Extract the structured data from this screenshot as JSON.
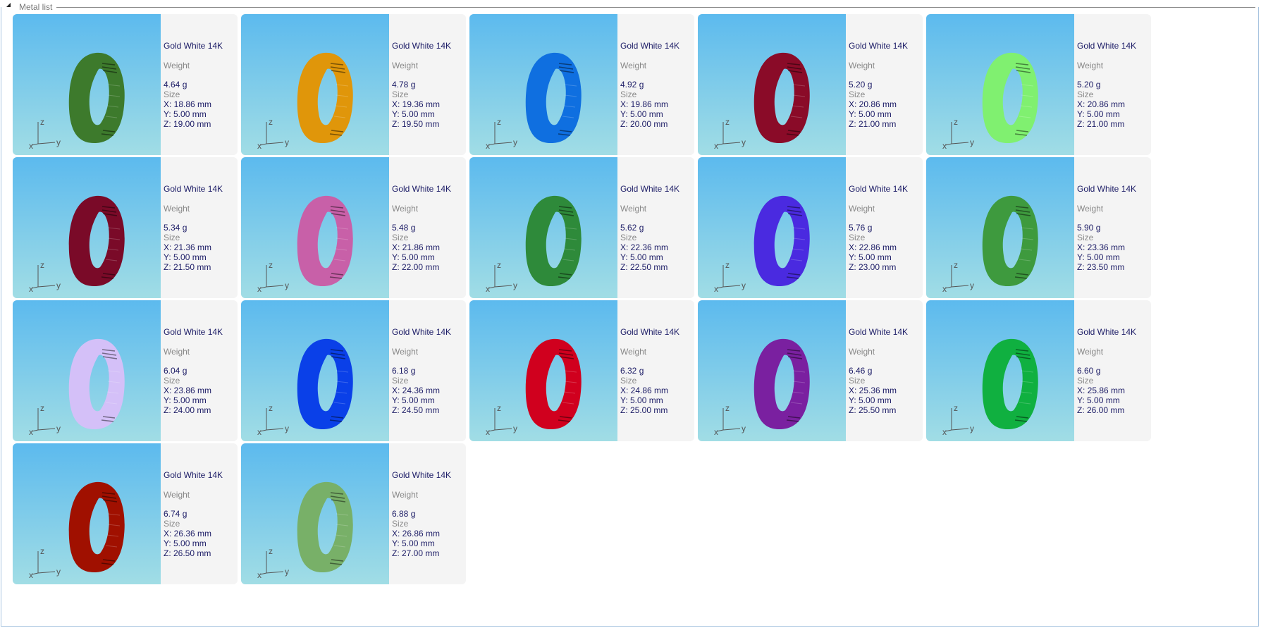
{
  "panel": {
    "title": "Metal list"
  },
  "labels": {
    "weight": "Weight",
    "size": "Size"
  },
  "items": [
    {
      "name": "Gold White 14K",
      "weight": "4.64 g",
      "x": "X: 18.86 mm",
      "y": "Y: 5.00 mm",
      "z": "Z: 19.00 mm",
      "color": "#3d7a2c"
    },
    {
      "name": "Gold White 14K",
      "weight": "4.78 g",
      "x": "X: 19.36 mm",
      "y": "Y: 5.00 mm",
      "z": "Z: 19.50 mm",
      "color": "#e0960a"
    },
    {
      "name": "Gold White 14K",
      "weight": "4.92 g",
      "x": "X: 19.86 mm",
      "y": "Y: 5.00 mm",
      "z": "Z: 20.00 mm",
      "color": "#0f6fe0"
    },
    {
      "name": "Gold White 14K",
      "weight": "5.20 g",
      "x": "X: 20.86 mm",
      "y": "Y: 5.00 mm",
      "z": "Z: 21.00 mm",
      "color": "#8a0b28"
    },
    {
      "name": "Gold White 14K",
      "weight": "5.20 g",
      "x": "X: 20.86 mm",
      "y": "Y: 5.00 mm",
      "z": "Z: 21.00 mm",
      "color": "#80f070"
    },
    {
      "name": "Gold White 14K",
      "weight": "5.34 g",
      "x": "X: 21.36 mm",
      "y": "Y: 5.00 mm",
      "z": "Z: 21.50 mm",
      "color": "#7a0a28"
    },
    {
      "name": "Gold White 14K",
      "weight": "5.48 g",
      "x": "X: 21.86 mm",
      "y": "Y: 5.00 mm",
      "z": "Z: 22.00 mm",
      "color": "#c860a8"
    },
    {
      "name": "Gold White 14K",
      "weight": "5.62 g",
      "x": "X: 22.36 mm",
      "y": "Y: 5.00 mm",
      "z": "Z: 22.50 mm",
      "color": "#2e8a3a"
    },
    {
      "name": "Gold White 14K",
      "weight": "5.76 g",
      "x": "X: 22.86 mm",
      "y": "Y: 5.00 mm",
      "z": "Z: 23.00 mm",
      "color": "#4a2ae0"
    },
    {
      "name": "Gold White 14K",
      "weight": "5.90 g",
      "x": "X: 23.36 mm",
      "y": "Y: 5.00 mm",
      "z": "Z: 23.50 mm",
      "color": "#3e9a3e"
    },
    {
      "name": "Gold White 14K",
      "weight": "6.04 g",
      "x": "X: 23.86 mm",
      "y": "Y: 5.00 mm",
      "z": "Z: 24.00 mm",
      "color": "#d4c0f8"
    },
    {
      "name": "Gold White 14K",
      "weight": "6.18 g",
      "x": "X: 24.36 mm",
      "y": "Y: 5.00 mm",
      "z": "Z: 24.50 mm",
      "color": "#0a40e8"
    },
    {
      "name": "Gold White 14K",
      "weight": "6.32 g",
      "x": "X: 24.86 mm",
      "y": "Y: 5.00 mm",
      "z": "Z: 25.00 mm",
      "color": "#d0001e"
    },
    {
      "name": "Gold White 14K",
      "weight": "6.46 g",
      "x": "X: 25.36 mm",
      "y": "Y: 5.00 mm",
      "z": "Z: 25.50 mm",
      "color": "#7a20a0"
    },
    {
      "name": "Gold White 14K",
      "weight": "6.60 g",
      "x": "X: 25.86 mm",
      "y": "Y: 5.00 mm",
      "z": "Z: 26.00 mm",
      "color": "#10b040"
    },
    {
      "name": "Gold White 14K",
      "weight": "6.74 g",
      "x": "X: 26.36 mm",
      "y": "Y: 5.00 mm",
      "z": "Z: 26.50 mm",
      "color": "#a01000"
    },
    {
      "name": "Gold White 14K",
      "weight": "6.88 g",
      "x": "X: 26.86 mm",
      "y": "Y: 5.00 mm",
      "z": "Z: 27.00 mm",
      "color": "#78b068"
    }
  ]
}
